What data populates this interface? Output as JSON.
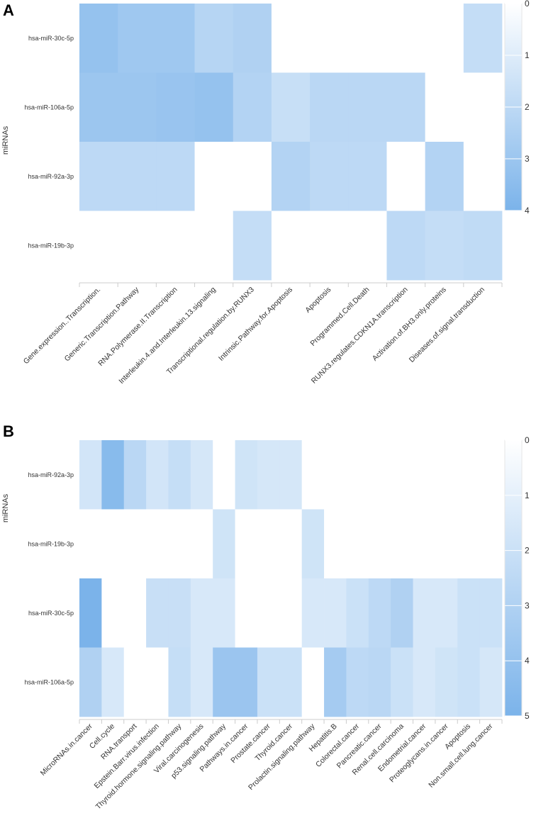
{
  "chart_data": [
    {
      "type": "heatmap",
      "panel_label": "A",
      "ylabel": "miRNAs",
      "xlabel": "",
      "rows": [
        "hsa-miR-30c-5p",
        "hsa-miR-106a-5p",
        "hsa-miR-92a-3p",
        "hsa-miR-19b-3p"
      ],
      "columns": [
        "Gene.expression..Transcription.",
        "Generic.Transcription.Pathway",
        "RNA.Polymerase.II.Transcription",
        "Interleukin.4.and.Interleukin.13.signaling",
        "Transcriptional.regulation.by.RUNX3",
        "Intrinsic.Pathway.for.Apoptosis",
        "Apoptosis",
        "Programmed.Cell.Death",
        "RUNX3.regulates.CDKN1A.transcription",
        "Activation.of.BH3.only.proteins",
        "Diseases.of.signal.transduction"
      ],
      "values": [
        [
          3.2,
          2.9,
          2.9,
          2.2,
          2.4,
          0,
          0,
          0,
          0,
          0,
          1.8
        ],
        [
          3.0,
          3.0,
          3.1,
          3.2,
          2.3,
          1.7,
          2.1,
          2.1,
          2.1,
          0,
          0
        ],
        [
          2.0,
          2.0,
          2.0,
          0,
          0,
          2.3,
          2.0,
          2.0,
          0,
          2.3,
          0
        ],
        [
          0,
          0,
          0,
          0,
          1.8,
          0,
          0,
          0,
          2.0,
          1.8,
          1.9
        ]
      ],
      "scale": {
        "min": 0,
        "max": 4,
        "ticks": [
          "0",
          "1",
          "2",
          "3",
          "4"
        ]
      },
      "colors": {
        "low": "#ffffff",
        "high": "#7bb3ea"
      }
    },
    {
      "type": "heatmap",
      "panel_label": "B",
      "ylabel": "miRNAs",
      "xlabel": "",
      "rows": [
        "hsa-miR-92a-3p",
        "hsa-miR-19b-3p",
        "hsa-miR-30c-5p",
        "hsa-miR-106a-5p"
      ],
      "columns": [
        "MicroRNAs.in.cancer",
        "Cell.cycle",
        "RNA.transport",
        "Epstein.Barr.virus.infection",
        "Thyroid.hormone.signaling.pathway",
        "Viral.carcinogenesis",
        "p53.signaling.pathway",
        "Pathways.in.cancer",
        "Prostate.cancer",
        "Thyroid.cancer",
        "Prolactin.signaling.pathway",
        "Hepatitis.B",
        "Colorectal.cancer",
        "Pancreatic.cancer",
        "Renal.cell.carcinoma",
        "Endometrial.cancer",
        "Proteoglycans.in.cancer",
        "Apoptosis",
        "Non.small.cell.lung.cancer"
      ],
      "values": [
        [
          1.7,
          4.5,
          2.6,
          1.7,
          2.2,
          1.6,
          0,
          1.8,
          1.6,
          1.6,
          0,
          0,
          0,
          0,
          0,
          0,
          0,
          0,
          0
        ],
        [
          0,
          0,
          0,
          0,
          0,
          0,
          1.8,
          0,
          0,
          0,
          1.8,
          0,
          0,
          0,
          0,
          0,
          0,
          0,
          0
        ],
        [
          5.0,
          0,
          0,
          2.1,
          2.1,
          1.5,
          1.5,
          0,
          0,
          0,
          1.5,
          1.5,
          2.0,
          2.5,
          3.0,
          1.5,
          1.5,
          2.0,
          2.0
        ],
        [
          3.0,
          1.5,
          0,
          0,
          2.2,
          1.5,
          3.8,
          3.8,
          2.0,
          2.0,
          0,
          3.4,
          2.5,
          2.6,
          2.0,
          1.5,
          1.8,
          2.0,
          1.6
        ]
      ],
      "scale": {
        "min": 0,
        "max": 5,
        "ticks": [
          "0",
          "1",
          "2",
          "3",
          "4",
          "5"
        ]
      },
      "colors": {
        "low": "#ffffff",
        "high": "#7bb3ea"
      }
    }
  ]
}
